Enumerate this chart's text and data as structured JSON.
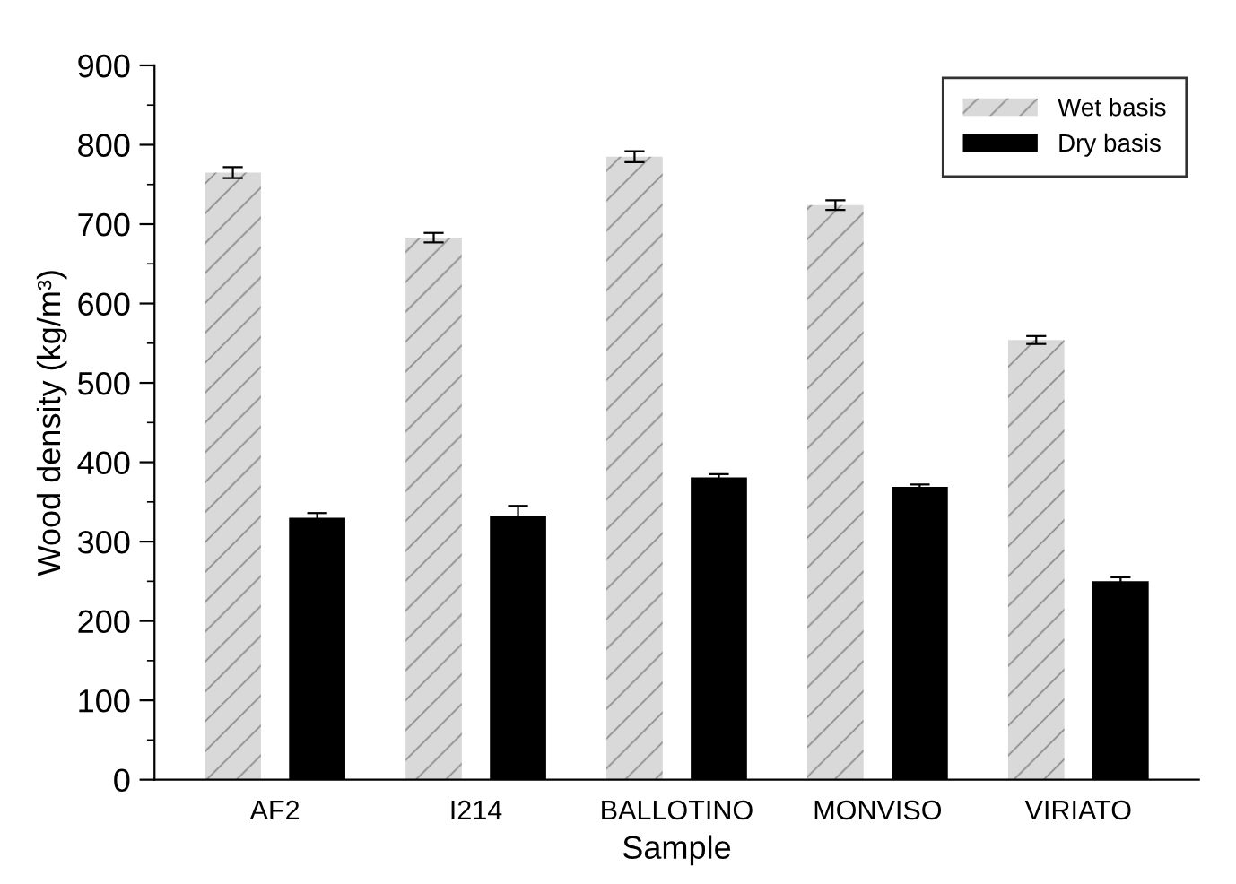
{
  "chart_data": {
    "type": "bar",
    "xlabel": "Sample",
    "ylabel": "Wood density (kg/m³)",
    "categories": [
      "AF2",
      "I214",
      "BALLOTINO",
      "MONVISO",
      "VIRIATO"
    ],
    "series": [
      {
        "name": "Wet basis",
        "color": "#d9d9d9",
        "values": [
          765,
          683,
          785,
          724,
          554
        ],
        "errors": [
          7,
          6,
          7,
          6,
          5
        ]
      },
      {
        "name": "Dry basis",
        "color": "#000000",
        "values": [
          330,
          333,
          381,
          369,
          250
        ],
        "errors": [
          6,
          12,
          4,
          3,
          5
        ]
      }
    ],
    "ylim": [
      0,
      900
    ],
    "yticks": [
      0,
      100,
      200,
      300,
      400,
      500,
      600,
      700,
      800,
      900
    ],
    "grid": false,
    "legend": "top right"
  }
}
